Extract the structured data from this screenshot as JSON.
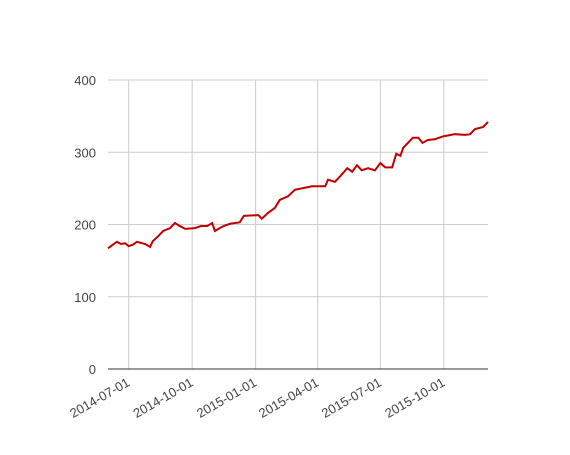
{
  "chart_data": {
    "type": "line",
    "x": [
      "2014-06-01",
      "2014-06-08",
      "2014-06-14",
      "2014-06-20",
      "2014-06-26",
      "2014-07-01",
      "2014-07-07",
      "2014-07-13",
      "2014-07-25",
      "2014-08-01",
      "2014-08-05",
      "2014-08-13",
      "2014-08-20",
      "2014-08-30",
      "2014-09-06",
      "2014-09-13",
      "2014-09-21",
      "2014-10-05",
      "2014-10-14",
      "2014-10-23",
      "2014-10-30",
      "2014-11-03",
      "2014-11-10",
      "2014-11-16",
      "2014-11-25",
      "2014-12-09",
      "2014-12-15",
      "2015-01-05",
      "2015-01-10",
      "2015-01-19",
      "2015-01-29",
      "2015-02-05",
      "2015-02-17",
      "2015-02-27",
      "2015-03-24",
      "2015-04-12",
      "2015-04-16",
      "2015-04-26",
      "2015-05-04",
      "2015-05-14",
      "2015-05-21",
      "2015-05-28",
      "2015-06-04",
      "2015-06-13",
      "2015-06-23",
      "2015-07-01",
      "2015-07-08",
      "2015-07-18",
      "2015-07-24",
      "2015-07-30",
      "2015-08-03",
      "2015-08-10",
      "2015-08-17",
      "2015-08-25",
      "2015-08-31",
      "2015-09-08",
      "2015-09-18",
      "2015-09-30",
      "2015-10-17",
      "2015-11-01",
      "2015-11-08",
      "2015-11-15",
      "2015-11-27",
      "2015-12-04"
    ],
    "series": [
      {
        "color": "#c00000",
        "values": [
          167,
          172,
          176,
          173,
          174,
          170,
          172,
          176,
          173,
          169,
          177,
          184,
          191,
          195,
          202,
          198,
          194,
          195,
          198,
          198,
          202,
          191,
          195,
          198,
          201,
          203,
          212,
          213,
          208,
          216,
          223,
          234,
          239,
          248,
          253,
          253,
          262,
          259,
          267,
          278,
          273,
          282,
          275,
          278,
          275,
          285,
          279,
          279,
          298,
          295,
          306,
          313,
          320,
          320,
          313,
          317,
          318,
          322,
          325,
          324,
          325,
          332,
          335,
          342
        ]
      }
    ],
    "xlim": [
      "2014-06-01",
      "2015-12-04"
    ],
    "xticks": [
      "2014-07-01",
      "2014-10-01",
      "2015-01-01",
      "2015-04-01",
      "2015-07-01",
      "2015-10-01"
    ],
    "ylim": [
      0,
      400
    ],
    "yticks": [
      0,
      100,
      200,
      300,
      400
    ],
    "grid": true
  }
}
